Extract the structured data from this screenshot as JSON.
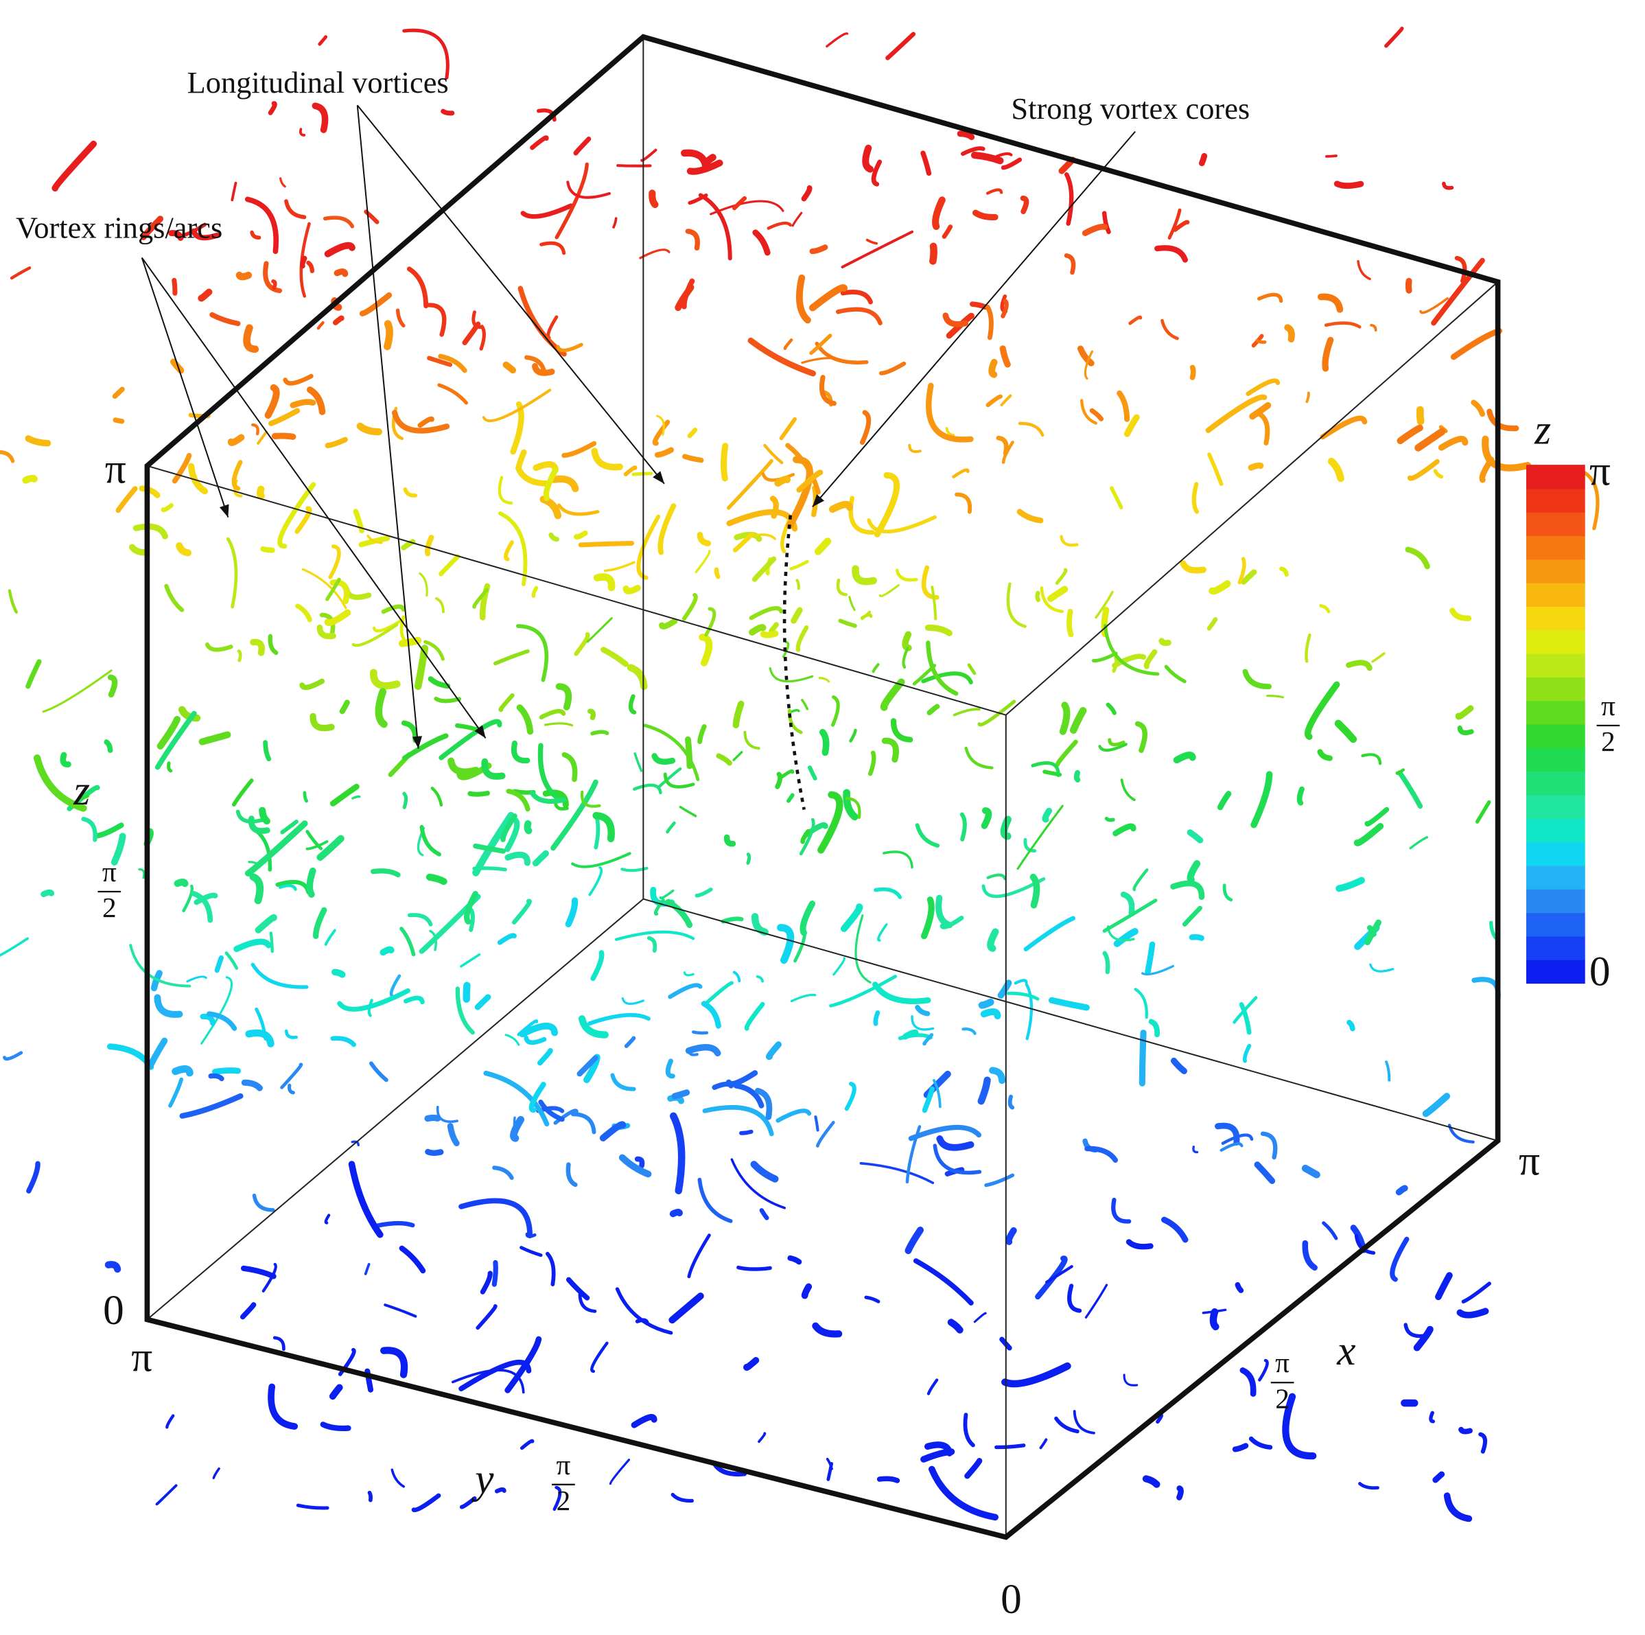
{
  "annotations": {
    "longitudinal": "Longitudinal vortices",
    "rings": "Vortex rings/arcs",
    "cores": "Strong vortex cores"
  },
  "axes": {
    "z": {
      "label": "z",
      "ticks": [
        {
          "text": "0"
        },
        {
          "numerator": "π",
          "denominator": "2"
        },
        {
          "text": "π"
        }
      ]
    },
    "y": {
      "label": "y",
      "ticks": [
        {
          "text": "π"
        },
        {
          "numerator": "π",
          "denominator": "2"
        },
        {
          "text": "0"
        }
      ]
    },
    "x": {
      "label": "x",
      "ticks": [
        {
          "numerator": "π",
          "denominator": "2"
        },
        {
          "text": "π"
        }
      ]
    }
  },
  "colorbar": {
    "title": "z",
    "ticks": [
      {
        "text": "0"
      },
      {
        "numerator": "π",
        "denominator": "2"
      },
      {
        "text": "π"
      }
    ],
    "colors": [
      "#0a1ff0",
      "#1540f5",
      "#1e62f5",
      "#2a88f5",
      "#22b2f5",
      "#10d6f0",
      "#10e6c8",
      "#20e6a0",
      "#20e078",
      "#20dc50",
      "#30d830",
      "#60dc20",
      "#90e018",
      "#bce818",
      "#e0ec10",
      "#f5d810",
      "#f8b810",
      "#f89810",
      "#f57810",
      "#f25515",
      "#ee3518",
      "#e81e1e"
    ]
  }
}
